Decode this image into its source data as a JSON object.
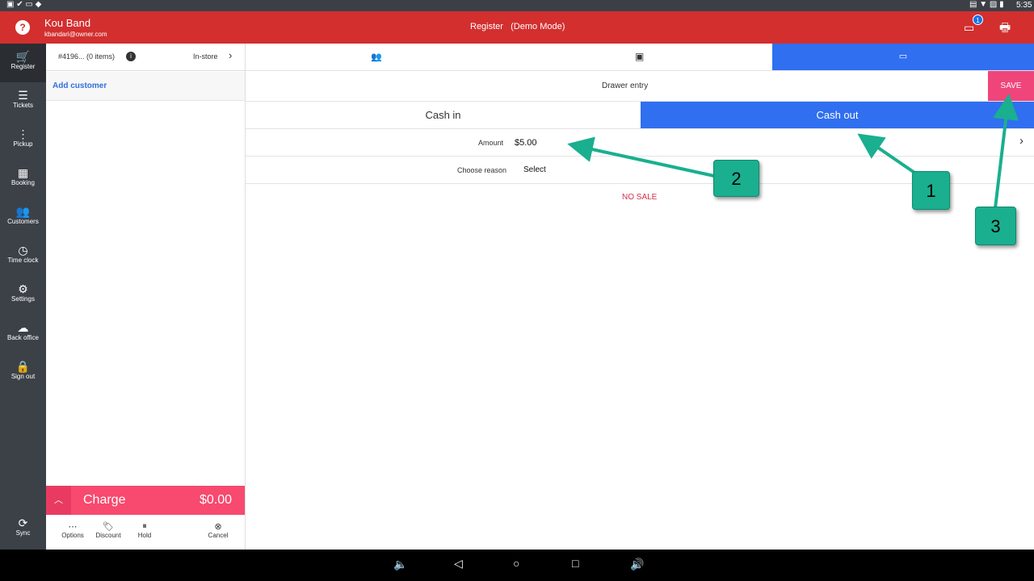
{
  "status_bar": {
    "time": "5:35"
  },
  "header": {
    "user_name": "Kou Band",
    "user_email": "kbandari@owner.com",
    "title": "Register",
    "mode": "(Demo Mode)",
    "device_badge": "1",
    "colors": {
      "header": "#d32f2f"
    }
  },
  "sidebar": {
    "items": [
      {
        "label": "Register",
        "icon": "cart-icon"
      },
      {
        "label": "Tickets",
        "icon": "list-icon"
      },
      {
        "label": "Pickup",
        "icon": "traffic-icon"
      },
      {
        "label": "Booking",
        "icon": "calendar-icon"
      },
      {
        "label": "Customers",
        "icon": "people-icon"
      },
      {
        "label": "Time clock",
        "icon": "clock-icon"
      },
      {
        "label": "Settings",
        "icon": "gear-icon"
      },
      {
        "label": "Back office",
        "icon": "cloud-icon"
      },
      {
        "label": "Sign out",
        "icon": "lock-icon"
      }
    ],
    "sync_label": "Sync"
  },
  "ticket": {
    "id": "#4196... (0 items)",
    "type": "In-store",
    "add_customer": "Add customer",
    "charge_label": "Charge",
    "charge_amount": "$0.00",
    "actions": [
      "Options",
      "Discount",
      "Hold",
      "Cancel"
    ]
  },
  "drawer": {
    "title": "Drawer entry",
    "save": "SAVE",
    "cash_in": "Cash in",
    "cash_out": "Cash out",
    "amount_label": "Amount",
    "amount_value": "$5.00",
    "reason_label": "Choose reason",
    "reason_value": "Select",
    "no_sale": "NO SALE",
    "colors": {
      "accent": "#2f6ff0",
      "save": "#f0457a",
      "no_sale": "#d32f4f"
    }
  },
  "callouts": [
    "1",
    "2",
    "3"
  ]
}
